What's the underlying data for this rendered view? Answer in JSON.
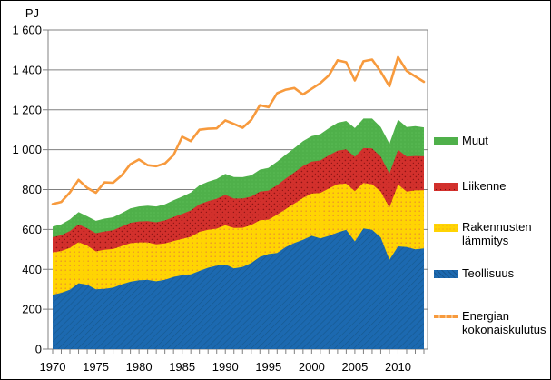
{
  "figure": {
    "unit_label": "PJ"
  },
  "legend": {
    "items": [
      {
        "label": "Muut",
        "color": "#4fb04a",
        "type": "area"
      },
      {
        "label": "Liikenne",
        "color": "#d2302c",
        "type": "area"
      },
      {
        "label": "Rakennusten lämmitys",
        "color": "#ffd403",
        "type": "area"
      },
      {
        "label": "Teollisuus",
        "color": "#1c69b0",
        "type": "area"
      },
      {
        "label": "Energian kokonaiskulutus",
        "color": "#f79a3d",
        "type": "line"
      }
    ]
  },
  "chart_data": {
    "type": "area",
    "stacked": true,
    "title": "",
    "ylabel": "PJ",
    "xlabel": "",
    "ylim": [
      0,
      1600
    ],
    "grid": true,
    "legend_position": "right",
    "x": [
      1970,
      1971,
      1972,
      1973,
      1974,
      1975,
      1976,
      1977,
      1978,
      1979,
      1980,
      1981,
      1982,
      1983,
      1984,
      1985,
      1986,
      1987,
      1988,
      1989,
      1990,
      1991,
      1992,
      1993,
      1994,
      1995,
      1996,
      1997,
      1998,
      1999,
      2000,
      2001,
      2002,
      2003,
      2004,
      2005,
      2006,
      2007,
      2008,
      2009,
      2010,
      2011,
      2012,
      2013
    ],
    "x_tick_labels": [
      "1970",
      "1975",
      "1980",
      "1985",
      "1990",
      "1995",
      "2000",
      "2005",
      "2010"
    ],
    "x_tick_values": [
      1970,
      1975,
      1980,
      1985,
      1990,
      1995,
      2000,
      2005,
      2010
    ],
    "y_tick_values": [
      0,
      200,
      400,
      600,
      800,
      1000,
      1200,
      1400,
      1600
    ],
    "y_tick_labels": [
      "0",
      "200",
      "400",
      "600",
      "800",
      "1 000",
      "1 200",
      "1 400",
      "1 600"
    ],
    "series": [
      {
        "name": "Teollisuus",
        "color": "#1c69b0",
        "pattern": "pat-blue",
        "values": [
          272,
          282,
          298,
          330,
          323,
          300,
          302,
          308,
          325,
          338,
          345,
          347,
          340,
          348,
          362,
          370,
          375,
          392,
          408,
          418,
          424,
          405,
          412,
          432,
          462,
          477,
          482,
          512,
          532,
          548,
          568,
          555,
          568,
          585,
          598,
          540,
          605,
          598,
          560,
          448,
          515,
          512,
          500,
          505
        ]
      },
      {
        "name": "Rakennusten lämmitys",
        "color": "#ffd403",
        "pattern": "pat-yellow",
        "values": [
          213,
          210,
          210,
          206,
          196,
          190,
          196,
          194,
          192,
          193,
          190,
          188,
          185,
          182,
          180,
          183,
          188,
          196,
          190,
          186,
          197,
          202,
          196,
          190,
          184,
          172,
          192,
          190,
          198,
          210,
          212,
          228,
          238,
          242,
          232,
          252,
          228,
          228,
          230,
          262,
          310,
          278,
          296,
          292
        ]
      },
      {
        "name": "Liikenne",
        "color": "#d2302c",
        "pattern": "pat-red",
        "values": [
          76,
          79,
          84,
          89,
          87,
          91,
          92,
          94,
          97,
          102,
          105,
          107,
          111,
          115,
          120,
          125,
          132,
          138,
          144,
          150,
          152,
          148,
          147,
          143,
          144,
          146,
          148,
          153,
          156,
          160,
          160,
          163,
          166,
          168,
          172,
          172,
          175,
          180,
          175,
          170,
          174,
          175,
          172,
          170
        ]
      },
      {
        "name": "Muut",
        "color": "#4fb04a",
        "pattern": "pat-green",
        "values": [
          53,
          55,
          58,
          62,
          60,
          62,
          64,
          65,
          68,
          72,
          75,
          77,
          79,
          81,
          84,
          87,
          90,
          95,
          97,
          99,
          106,
          108,
          107,
          106,
          110,
          114,
          118,
          120,
          122,
          125,
          128,
          132,
          136,
          140,
          142,
          144,
          148,
          150,
          148,
          150,
          152,
          148,
          150,
          145
        ]
      }
    ],
    "line_series": {
      "name": "Energian kokonaiskulutus",
      "color": "#f79a3d",
      "values": [
        727,
        738,
        786,
        849,
        808,
        784,
        836,
        834,
        871,
        927,
        951,
        922,
        917,
        931,
        973,
        1065,
        1043,
        1100,
        1105,
        1107,
        1147,
        1129,
        1110,
        1149,
        1223,
        1213,
        1283,
        1301,
        1309,
        1277,
        1305,
        1334,
        1373,
        1448,
        1438,
        1347,
        1443,
        1452,
        1391,
        1318,
        1464,
        1395,
        1367,
        1340
      ]
    }
  }
}
